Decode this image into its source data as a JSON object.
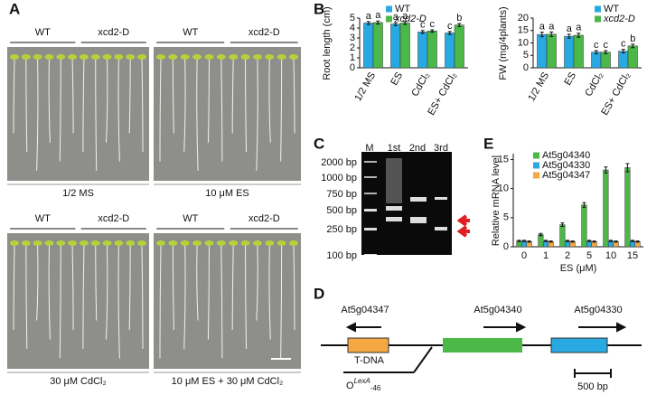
{
  "panel_labels": [
    "A",
    "B",
    "C",
    "D",
    "E"
  ],
  "photos": [
    {
      "genotypes": [
        "WT",
        "xcd2-D"
      ],
      "condition": "1/2 MS"
    },
    {
      "genotypes": [
        "WT",
        "xcd2-D"
      ],
      "condition": "10 μM ES"
    },
    {
      "genotypes": [
        "WT",
        "xcd2-D"
      ],
      "condition": "30 μM CdCl₂"
    },
    {
      "genotypes": [
        "WT",
        "xcd2-D"
      ],
      "condition": "10 μM ES + 30 μM CdCl₂"
    }
  ],
  "gel": {
    "ladder": [
      "2000 bp",
      "1000 bp",
      "750 bp",
      "500 bp",
      "250 bp",
      "100 bp"
    ],
    "lanes": [
      "M",
      "1st",
      "2nd",
      "3rd"
    ]
  },
  "gene_map": {
    "genes": [
      "At5g04347",
      "At5g04340",
      "At5g04330"
    ],
    "tdna": "T-DNA",
    "promoter": {
      "base": "O",
      "sup": "LexA",
      "sub": "-46"
    },
    "scale": "500 bp"
  },
  "chart_data": [
    {
      "type": "bar",
      "y_label": "Root length (cm)",
      "categories": [
        "1/2 MS",
        "ES",
        "CdCl₂",
        "ES+ CdCl₂"
      ],
      "series": [
        {
          "name": "WT",
          "color": "#29a9e1",
          "values": [
            4.5,
            4.4,
            3.6,
            3.5
          ],
          "errors": [
            0.15,
            0.15,
            0.15,
            0.15
          ],
          "letters": [
            "a",
            "a",
            "c",
            "c"
          ]
        },
        {
          "name": "xcd2-D",
          "color": "#4cb848",
          "values": [
            4.55,
            4.5,
            3.7,
            4.3
          ],
          "errors": [
            0.15,
            0.15,
            0.12,
            0.15
          ],
          "letters": [
            "a",
            "a",
            "c",
            "b"
          ]
        }
      ],
      "ylim": [
        0,
        5
      ],
      "yticks": [
        0,
        1,
        2,
        3,
        4,
        5
      ]
    },
    {
      "type": "bar",
      "y_label": "FW (mg/4plants)",
      "categories": [
        "1/2 MS",
        "ES",
        "CdCl₂",
        "ES+ CdCl₂"
      ],
      "series": [
        {
          "name": "WT",
          "color": "#29a9e1",
          "values": [
            13.4,
            12.7,
            6.3,
            6.7
          ],
          "errors": [
            0.9,
            0.8,
            0.6,
            0.7
          ],
          "letters": [
            "a",
            "a",
            "c",
            "c"
          ]
        },
        {
          "name": "xcd2-D",
          "color": "#4cb848",
          "values": [
            13.5,
            13.1,
            6.3,
            8.8
          ],
          "errors": [
            0.9,
            0.8,
            0.6,
            0.7
          ],
          "letters": [
            "a",
            "a",
            "c",
            "b"
          ]
        }
      ],
      "ylim": [
        0,
        20
      ],
      "yticks": [
        0,
        5,
        10,
        15,
        20
      ]
    },
    {
      "type": "bar",
      "y_label": "Relative mRNA level",
      "x_label": "ES (μM)",
      "categories": [
        "0",
        "1",
        "2",
        "5",
        "10",
        "15"
      ],
      "series": [
        {
          "name": "At5g04340",
          "color": "#4cb848",
          "values": [
            1,
            2.1,
            3.8,
            7.2,
            13.2,
            13.6
          ],
          "errors": [
            0.1,
            0.2,
            0.3,
            0.4,
            0.5,
            0.7
          ]
        },
        {
          "name": "At5g04330",
          "color": "#29a9e1",
          "values": [
            1,
            1,
            1,
            1,
            1,
            1
          ],
          "errors": [
            0.1,
            0.1,
            0.1,
            0.1,
            0.1,
            0.1
          ]
        },
        {
          "name": "At5g04347",
          "color": "#f5a742",
          "values": [
            0.9,
            0.9,
            0.9,
            0.9,
            0.9,
            0.9
          ],
          "errors": [
            0.1,
            0.1,
            0.1,
            0.1,
            0.1,
            0.1
          ]
        }
      ],
      "ylim": [
        0,
        16
      ],
      "yticks": [
        0,
        5,
        10,
        15
      ]
    }
  ]
}
